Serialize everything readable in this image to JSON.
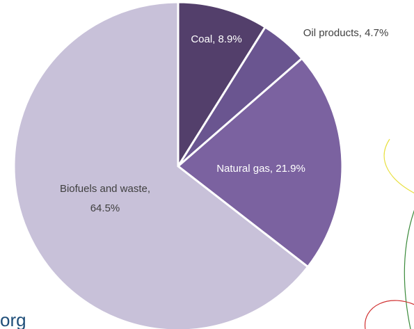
{
  "chart_data": {
    "type": "pie",
    "values": [
      8.9,
      4.7,
      21.9,
      64.5
    ],
    "value_labels": [
      [
        "Coal, 8.9%"
      ],
      [
        "Oil products, 4.7%"
      ],
      [
        "Natural gas, 21.9%"
      ],
      [
        "Biofuels and waste,",
        "64.5%"
      ]
    ],
    "colors": [
      "#533f6b",
      "#6a5590",
      "#7b62a0",
      "#c8c1d9"
    ],
    "label_colors": [
      "#ffffff",
      "#404040",
      "#ffffff",
      "#404040"
    ],
    "annotations": [
      "org"
    ]
  }
}
